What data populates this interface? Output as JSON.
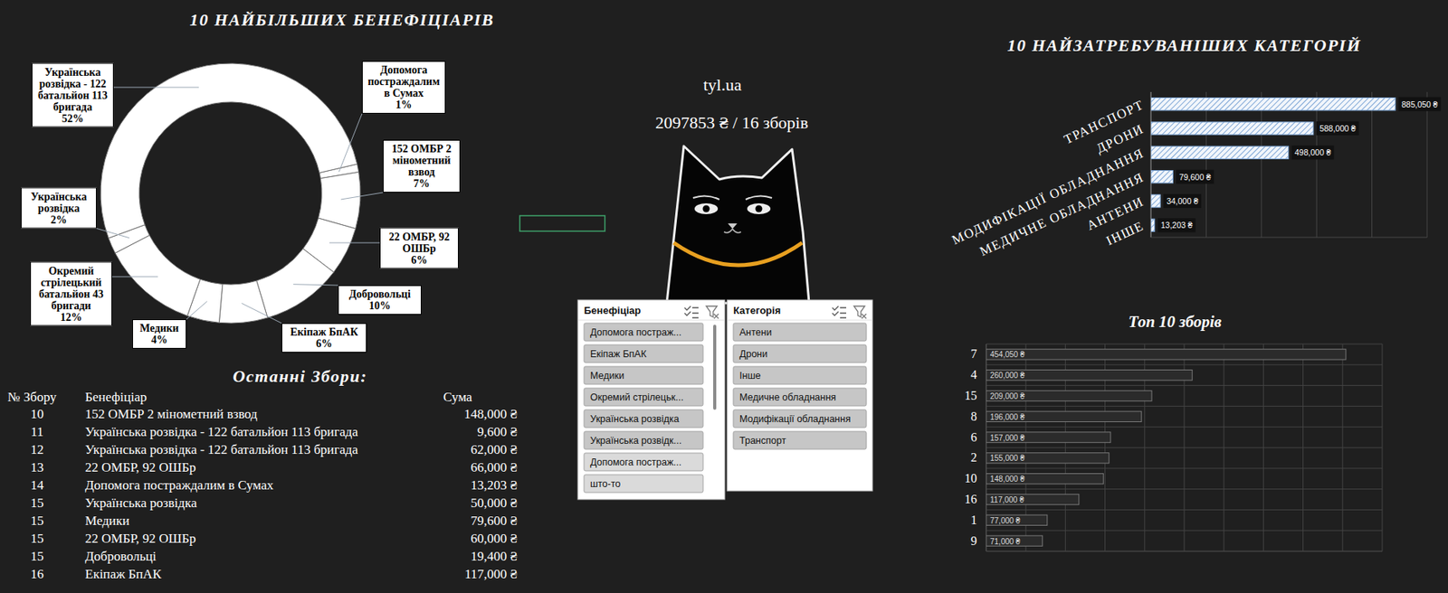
{
  "chart_data": [
    {
      "type": "donut",
      "title": "10 НАЙБІЛЬШИХ БЕНЕФІЦІАРІВ",
      "categories": [
        "Допомога постраждалим в Сумах",
        "152 ОМБР 2 мінометний взвод",
        "22 ОМБР, 92 ОШБр",
        "Добровольці",
        "Екіпаж БпАК",
        "Медики",
        "Окремий стрілецький батальйон 43 бригади",
        "Українська розвідка",
        "Українська розвідка - 122 батальйон 113 бригада"
      ],
      "values": [
        1,
        7,
        6,
        10,
        6,
        4,
        12,
        2,
        52
      ],
      "value_labels": [
        "1%",
        "7%",
        "6%",
        "10%",
        "6%",
        "4%",
        "12%",
        "2%",
        "52%"
      ],
      "data_labels": true,
      "color": "#ffffff"
    },
    {
      "type": "bar",
      "title": "10 НАЙЗАТРЕБУВАНІШИХ КАТЕГОРІЙ",
      "orientation": "horizontal",
      "categories": [
        "ТРАНСПОРТ",
        "ДРОНИ",
        "МОДИФІКАЦІЇ ОБЛАДНАННЯ",
        "МЕДИЧНЕ ОБЛАДНАННЯ",
        "АНТЕНИ",
        "ІНШЕ"
      ],
      "values": [
        885050,
        588000,
        498000,
        79600,
        34000,
        13203
      ],
      "value_labels": [
        "885,050 ₴",
        "588,000 ₴",
        "498,000 ₴",
        "79,600 ₴",
        "34,000 ₴",
        "13,203 ₴"
      ],
      "data_labels": true,
      "color": "#7ea6d6",
      "xlim": [
        0,
        1000000
      ],
      "xticks": [
        0,
        200000,
        400000,
        600000,
        800000,
        1000000
      ],
      "grid": true,
      "tick_labels": "y"
    },
    {
      "type": "bar",
      "title": "Топ 10 зборів",
      "orientation": "horizontal",
      "categories": [
        "7",
        "4",
        "15",
        "8",
        "6",
        "2",
        "10",
        "16",
        "1",
        "9"
      ],
      "values": [
        454050,
        260000,
        209000,
        196000,
        157000,
        155000,
        148000,
        117000,
        77000,
        71000
      ],
      "value_labels": [
        "454,050 ₴",
        "260,000 ₴",
        "209,000 ₴",
        "196,000 ₴",
        "157,000 ₴",
        "155,000 ₴",
        "148,000 ₴",
        "117,000 ₴",
        "77,000 ₴",
        "71,000 ₴"
      ],
      "data_labels": true,
      "color": "#2b2b2b",
      "xlim": [
        0,
        500000
      ],
      "xticks": [
        0,
        50000,
        100000,
        150000,
        200000,
        250000,
        300000,
        350000,
        400000,
        450000,
        500000
      ],
      "grid": true,
      "tick_labels": "y"
    }
  ],
  "site": {
    "name": "tyl.ua",
    "summary": "2097853 ₴ / 16 зборів"
  },
  "table": {
    "title": "Останні Збори:",
    "columns": [
      "№ Збору",
      "Бенефіціар",
      "Сума"
    ],
    "rows": [
      [
        10,
        "152 ОМБР 2 мінометний взвод",
        "148,000 ₴"
      ],
      [
        11,
        "Українська розвідка - 122 батальйон 113 бригада",
        "9,600 ₴"
      ],
      [
        12,
        "Українська розвідка - 122 батальйон 113 бригада",
        "62,000 ₴"
      ],
      [
        13,
        "22 ОМБР, 92 ОШБр",
        "66,000 ₴"
      ],
      [
        14,
        "Допомога постраждалим в Сумах",
        "13,203 ₴"
      ],
      [
        15,
        "Українська розвідка",
        "50,000 ₴"
      ],
      [
        15,
        "Медики",
        "79,600 ₴"
      ],
      [
        15,
        "22 ОМБР, 92 ОШБр",
        "60,000 ₴"
      ],
      [
        15,
        "Добровольці",
        "19,400 ₴"
      ],
      [
        16,
        "Екіпаж БпАК",
        "117,000 ₴"
      ]
    ]
  },
  "slicers": [
    {
      "title": "Бенефіціар",
      "items": [
        "Допомога постраж...",
        "Екіпаж БпАК",
        "Медики",
        "Окремий стрілецьк...",
        "Українська розвідка",
        "Українська розвідк...",
        "Допомога постраж...",
        "што-то"
      ]
    },
    {
      "title": "Категорія",
      "items": [
        "Антени",
        "Дрони",
        "Інше",
        "Медичне обладнання",
        "Модифікації обладнання",
        "Транспорт"
      ]
    }
  ]
}
